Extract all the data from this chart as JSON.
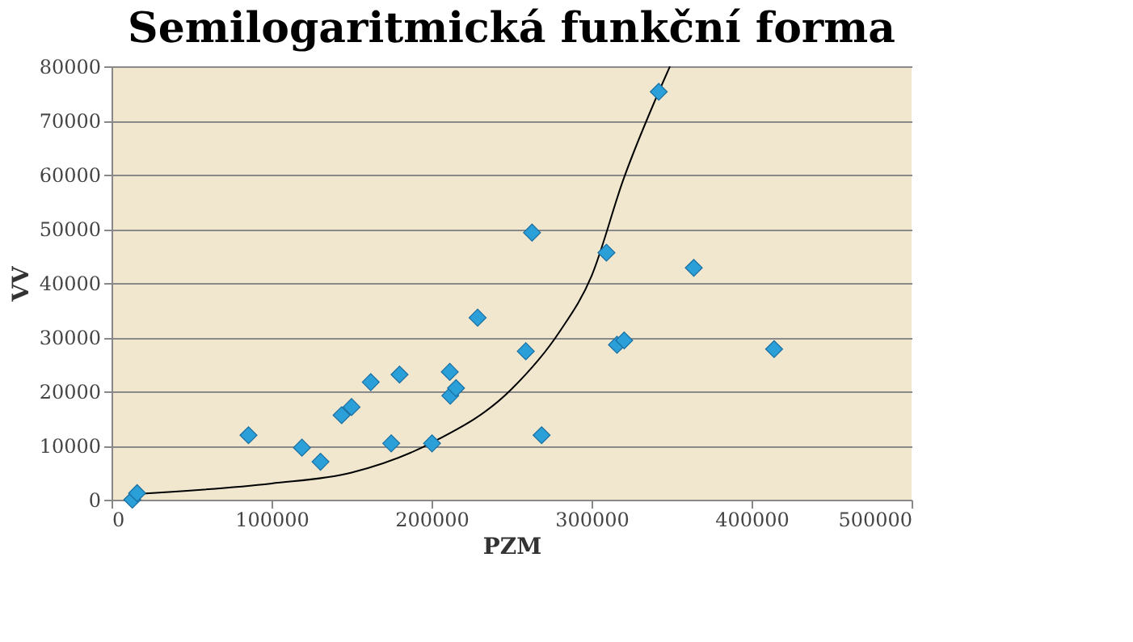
{
  "chart_data": {
    "type": "scatter",
    "title": "Semilogaritmická funkční forma",
    "xlabel": "PZM",
    "ylabel": "VV",
    "xlim": [
      0,
      500000
    ],
    "xticks": [
      0,
      100000,
      200000,
      300000,
      400000,
      500000
    ],
    "ylim": [
      0,
      80000
    ],
    "yticks": [
      0,
      10000,
      20000,
      30000,
      40000,
      50000,
      60000,
      70000,
      80000
    ],
    "grid": "y",
    "series": [
      {
        "type": "scatter",
        "marker": "diamond",
        "color": "#2a9fd8",
        "x": [
          13000,
          16000,
          85600,
          119000,
          130600,
          143800,
          150000,
          162000,
          180000,
          174800,
          200300,
          211400,
          211700,
          215300,
          228800,
          258900,
          262800,
          268800,
          309300,
          315900,
          320400,
          342000,
          363900,
          414100
        ],
        "values": [
          0,
          1200,
          11900,
          9600,
          7000,
          15600,
          17100,
          21700,
          23100,
          10400,
          10400,
          23600,
          19200,
          20600,
          33600,
          27400,
          49300,
          11900,
          45600,
          28600,
          29400,
          75300,
          42800,
          27800
        ]
      },
      {
        "color": "#000000",
        "type": "line",
        "x": [
          13000,
          100000,
          150000,
          200000,
          250000,
          280000,
          300000,
          320000,
          342000,
          349000
        ],
        "values": [
          1000,
          3000,
          5000,
          10500,
          20400,
          31000,
          41300,
          59200,
          75300,
          80000
        ]
      }
    ]
  }
}
